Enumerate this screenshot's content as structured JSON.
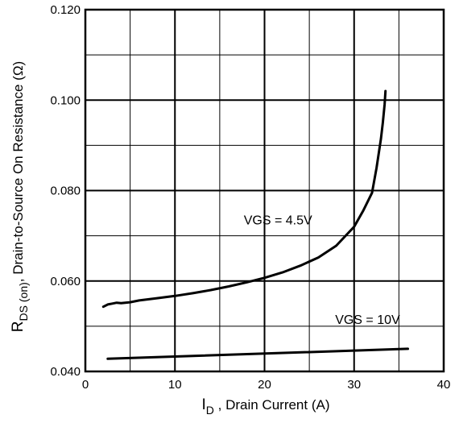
{
  "chart_data": {
    "type": "line",
    "xlabel": {
      "symbol": "I",
      "sub": "D",
      "text": " , Drain Current (A)"
    },
    "ylabel": {
      "symbol": "R",
      "sub": "DS (on)",
      "text": ", Drain-to-Source On Resistance  (Ω)"
    },
    "xlim": [
      0,
      40
    ],
    "ylim": [
      0.04,
      0.12
    ],
    "xticks": [
      0,
      10,
      20,
      30,
      40
    ],
    "xtick_labels": [
      "0",
      "10",
      "20",
      "30",
      "40"
    ],
    "yticks": [
      0.04,
      0.06,
      0.08,
      0.1,
      0.12
    ],
    "ytick_labels": [
      "0.040",
      "0.060",
      "0.080",
      "0.100",
      "0.120"
    ],
    "grid": true,
    "grid_divisions": {
      "x": 8,
      "y": 8
    },
    "series": [
      {
        "name": "VGS = 4.5V",
        "color": "#000000",
        "x": [
          2.0,
          2.5,
          3.0,
          3.5,
          4.0,
          5.0,
          6.0,
          8.0,
          10.0,
          12.0,
          14.0,
          16.0,
          18.0,
          20.0,
          22.0,
          24.0,
          26.0,
          28.0,
          30.0,
          31.0,
          32.0,
          32.5,
          33.0,
          33.2,
          33.4,
          33.5
        ],
        "y": [
          0.0543,
          0.0548,
          0.055,
          0.0552,
          0.0551,
          0.0553,
          0.0557,
          0.0562,
          0.0567,
          0.0573,
          0.058,
          0.0588,
          0.0597,
          0.0607,
          0.0619,
          0.0634,
          0.0652,
          0.0678,
          0.072,
          0.0755,
          0.0795,
          0.085,
          0.0915,
          0.095,
          0.099,
          0.102
        ]
      },
      {
        "name": "VGS = 10V",
        "color": "#000000",
        "x": [
          2.5,
          36.0
        ],
        "y": [
          0.0428,
          0.045
        ]
      }
    ],
    "annotations": [
      {
        "text": "VGS = 4.5V",
        "x": 21.5,
        "y": 0.0725
      },
      {
        "text": "VGS = 10V",
        "x": 31.5,
        "y": 0.0505
      }
    ]
  }
}
